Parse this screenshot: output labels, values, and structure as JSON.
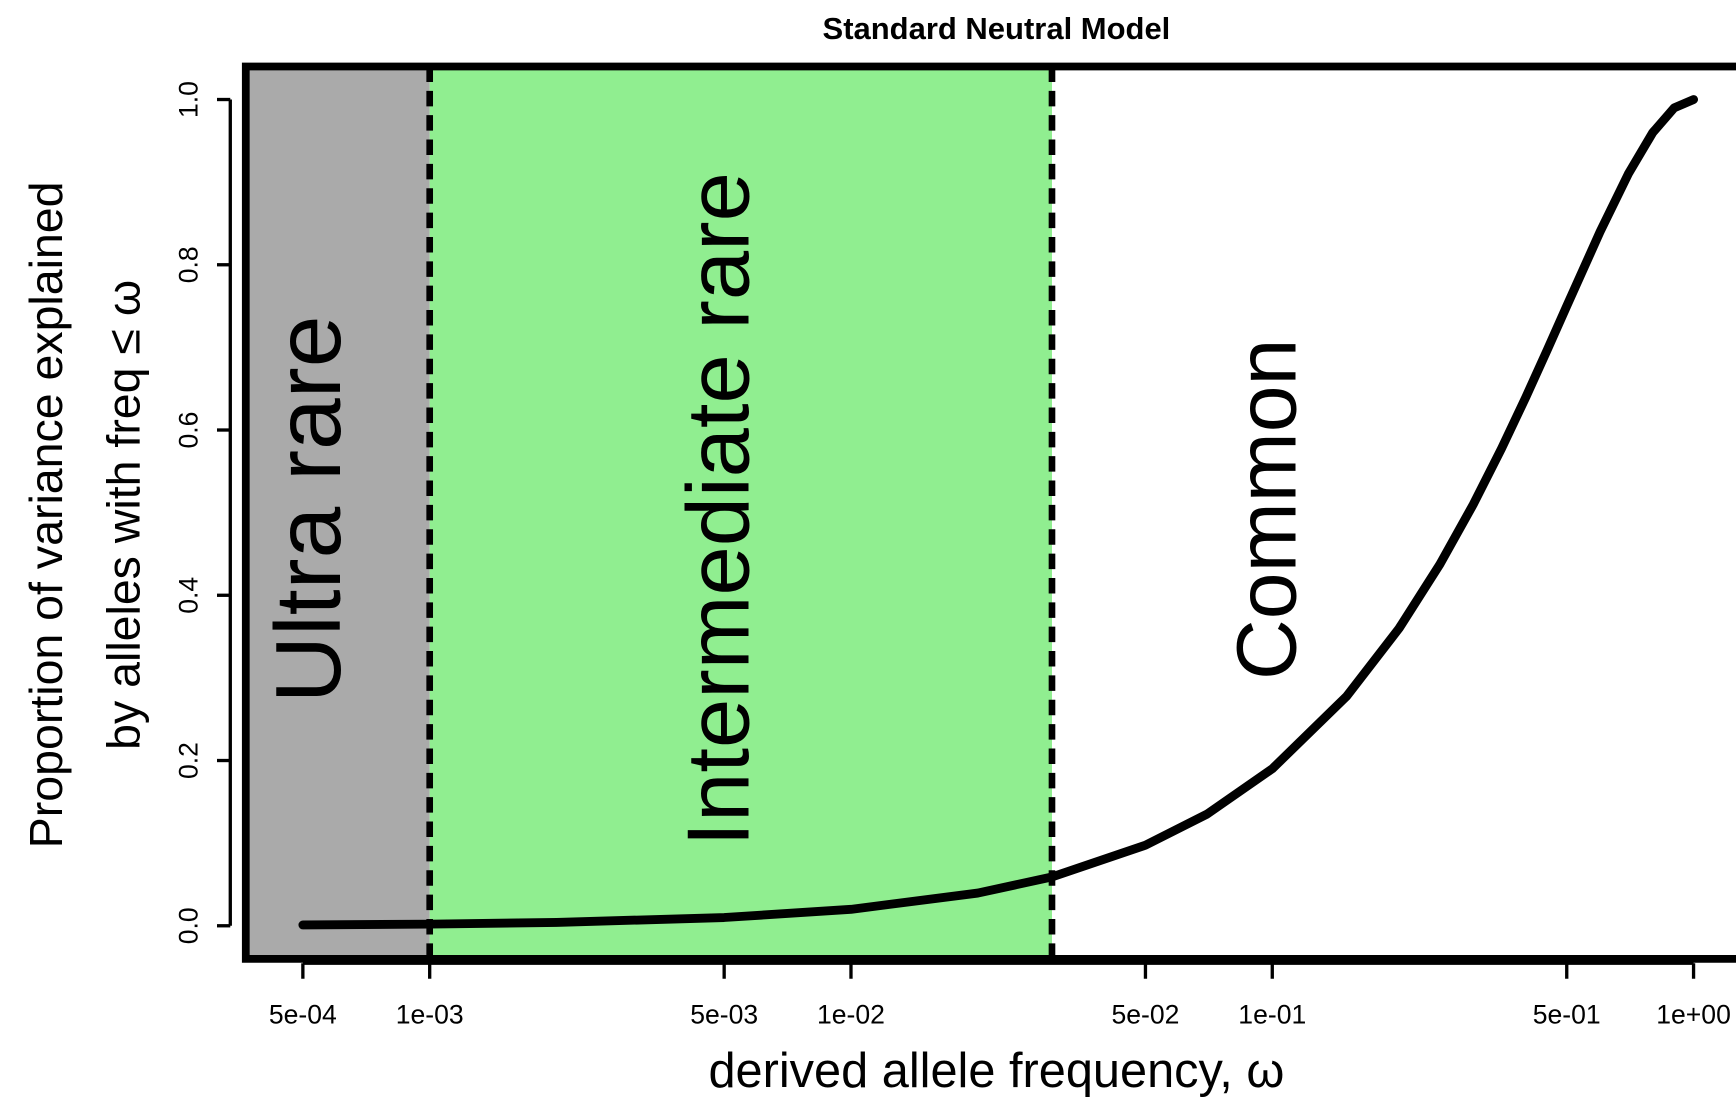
{
  "chart_data": {
    "type": "line",
    "title": "Standard Neutral Model",
    "x_label": "derived allele frequency, ω",
    "y_label": [
      "Proportion of variance explained",
      "by alleles with freq ≤ ω"
    ],
    "log_x": true,
    "xlim": [
      0.000366,
      1.356
    ],
    "ylim": [
      -0.04,
      1.04
    ],
    "xticks": [
      {
        "value": 0.0005,
        "label": "5e-04"
      },
      {
        "value": 0.001,
        "label": "1e-03"
      },
      {
        "value": 0.005,
        "label": "5e-03"
      },
      {
        "value": 0.01,
        "label": "1e-02"
      },
      {
        "value": 0.05,
        "label": "5e-02"
      },
      {
        "value": 0.1,
        "label": "1e-01"
      },
      {
        "value": 0.5,
        "label": "5e-01"
      },
      {
        "value": 1,
        "label": "1e+00"
      }
    ],
    "yticks": [
      {
        "value": 0,
        "label": "0.0"
      },
      0.2,
      0.4,
      0.6,
      0.8,
      {
        "value": 1,
        "label": "1.0"
      }
    ],
    "boundaries": [
      0.001,
      0.03
    ],
    "regions": [
      {
        "label": "Ultra rare",
        "color": "#aaaaaa"
      },
      {
        "label": "Intermediate rare",
        "color": "#90ee90"
      },
      {
        "label": "Common",
        "color": "#ffffff"
      }
    ],
    "color": "#000000",
    "x": [
      0.0005,
      0.001,
      0.002,
      0.005,
      0.01,
      0.02,
      0.03,
      0.05,
      0.07,
      0.1,
      0.15,
      0.2,
      0.25,
      0.3,
      0.35,
      0.4,
      0.45,
      0.5,
      0.6,
      0.7,
      0.8,
      0.9,
      1.0
    ],
    "values": [
      0.001,
      0.002,
      0.004,
      0.01,
      0.0199,
      0.0396,
      0.0591,
      0.0975,
      0.1351,
      0.19,
      0.2775,
      0.36,
      0.4375,
      0.51,
      0.5775,
      0.64,
      0.6975,
      0.75,
      0.84,
      0.91,
      0.96,
      0.99,
      1.0
    ]
  }
}
